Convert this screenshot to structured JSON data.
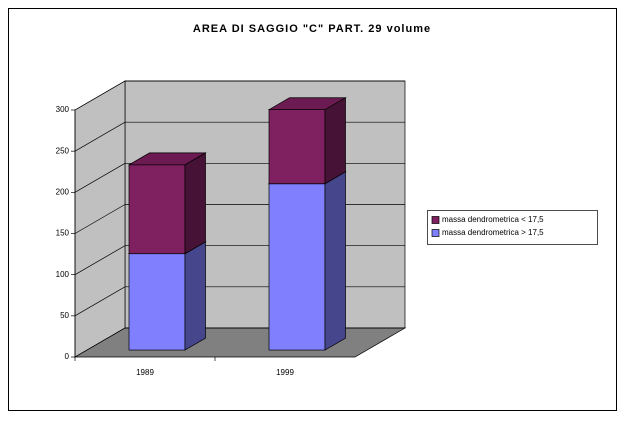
{
  "chart_data": {
    "type": "bar3d_stacked",
    "title": "AREA DI SAGGIO \"C\" PART. 29 volume",
    "categories": [
      "1989",
      "1999"
    ],
    "series": [
      {
        "name": "massa dendrometrica > 17,5",
        "color": "#8080ff",
        "values": [
          117,
          202
        ]
      },
      {
        "name": "massa dendrometrica < 17,5",
        "color": "#7f2060",
        "values": [
          108,
          90
        ]
      }
    ],
    "ylim": [
      0,
      300
    ],
    "yticks": [
      0,
      50,
      100,
      150,
      200,
      250,
      300
    ],
    "grid": true,
    "legend": "right"
  }
}
